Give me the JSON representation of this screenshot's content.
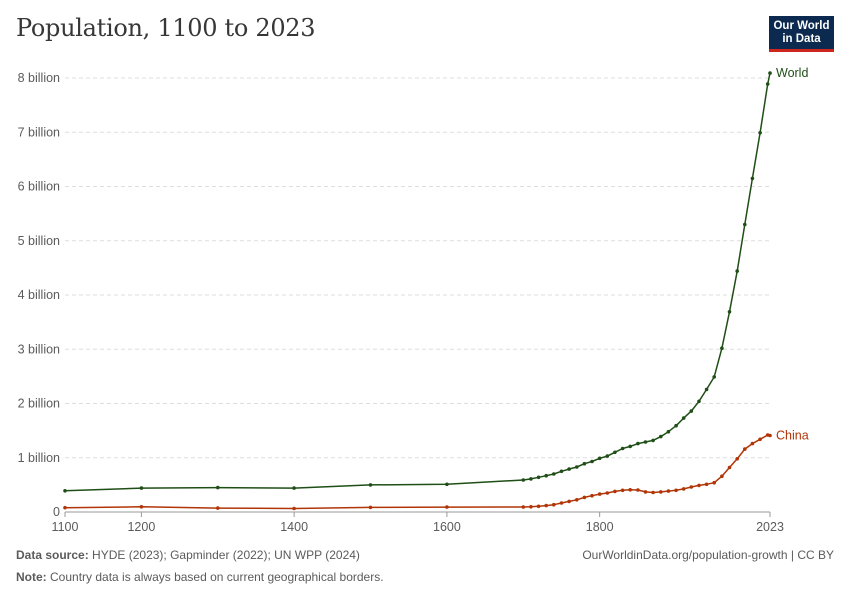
{
  "header": {
    "title": "Population, 1100 to 2023",
    "logo_line1": "Our World",
    "logo_line2": "in Data"
  },
  "footer": {
    "source_label": "Data source:",
    "source_text": "HYDE (2023); Gapminder (2022); UN WPP (2024)",
    "url_text": "OurWorldinData.org/population-growth | CC BY",
    "note_label": "Note:",
    "note_text": "Country data is always based on current geographical borders."
  },
  "colors": {
    "world": "#1f4e16",
    "china": "#b13507",
    "grid": "#dddddd",
    "axis": "#999999"
  },
  "chart_data": {
    "type": "line",
    "title": "Population, 1100 to 2023",
    "xlim": [
      1100,
      2023
    ],
    "ylim": [
      0,
      8000000000
    ],
    "x_ticks": [
      {
        "value": 1100,
        "label": "1100"
      },
      {
        "value": 1200,
        "label": "1200"
      },
      {
        "value": 1400,
        "label": "1400"
      },
      {
        "value": 1600,
        "label": "1600"
      },
      {
        "value": 1800,
        "label": "1800"
      },
      {
        "value": 2023,
        "label": "2023"
      }
    ],
    "y_ticks": [
      {
        "value": 0,
        "label": "0"
      },
      {
        "value": 1000000000,
        "label": "1 billion"
      },
      {
        "value": 2000000000,
        "label": "2 billion"
      },
      {
        "value": 3000000000,
        "label": "3 billion"
      },
      {
        "value": 4000000000,
        "label": "4 billion"
      },
      {
        "value": 5000000000,
        "label": "5 billion"
      },
      {
        "value": 6000000000,
        "label": "6 billion"
      },
      {
        "value": 7000000000,
        "label": "7 billion"
      },
      {
        "value": 8000000000,
        "label": "8 billion"
      }
    ],
    "grid": true,
    "legend": "end-of-line labels",
    "series": [
      {
        "name": "World",
        "color": "#1f4e16",
        "points": [
          [
            1100,
            390000000
          ],
          [
            1200,
            440000000
          ],
          [
            1300,
            450000000
          ],
          [
            1400,
            440000000
          ],
          [
            1500,
            500000000
          ],
          [
            1600,
            510000000
          ],
          [
            1700,
            590000000
          ],
          [
            1710,
            610000000
          ],
          [
            1720,
            640000000
          ],
          [
            1730,
            670000000
          ],
          [
            1740,
            700000000
          ],
          [
            1750,
            750000000
          ],
          [
            1760,
            790000000
          ],
          [
            1770,
            830000000
          ],
          [
            1780,
            890000000
          ],
          [
            1790,
            930000000
          ],
          [
            1800,
            990000000
          ],
          [
            1810,
            1030000000
          ],
          [
            1820,
            1100000000
          ],
          [
            1830,
            1170000000
          ],
          [
            1840,
            1210000000
          ],
          [
            1850,
            1260000000
          ],
          [
            1860,
            1290000000
          ],
          [
            1870,
            1320000000
          ],
          [
            1880,
            1390000000
          ],
          [
            1890,
            1480000000
          ],
          [
            1900,
            1590000000
          ],
          [
            1910,
            1730000000
          ],
          [
            1920,
            1860000000
          ],
          [
            1930,
            2040000000
          ],
          [
            1940,
            2260000000
          ],
          [
            1950,
            2490000000
          ],
          [
            1960,
            3020000000
          ],
          [
            1970,
            3690000000
          ],
          [
            1980,
            4440000000
          ],
          [
            1990,
            5300000000
          ],
          [
            2000,
            6150000000
          ],
          [
            2010,
            6990000000
          ],
          [
            2020,
            7890000000
          ],
          [
            2023,
            8090000000
          ]
        ]
      },
      {
        "name": "China",
        "color": "#b13507",
        "points": [
          [
            1100,
            80000000
          ],
          [
            1200,
            95000000
          ],
          [
            1300,
            72000000
          ],
          [
            1400,
            65000000
          ],
          [
            1500,
            84000000
          ],
          [
            1600,
            90000000
          ],
          [
            1700,
            93000000
          ],
          [
            1710,
            96000000
          ],
          [
            1720,
            105000000
          ],
          [
            1730,
            118000000
          ],
          [
            1740,
            135000000
          ],
          [
            1750,
            165000000
          ],
          [
            1760,
            195000000
          ],
          [
            1770,
            225000000
          ],
          [
            1780,
            270000000
          ],
          [
            1790,
            300000000
          ],
          [
            1800,
            330000000
          ],
          [
            1810,
            350000000
          ],
          [
            1820,
            380000000
          ],
          [
            1830,
            400000000
          ],
          [
            1840,
            410000000
          ],
          [
            1850,
            405000000
          ],
          [
            1860,
            370000000
          ],
          [
            1870,
            360000000
          ],
          [
            1880,
            370000000
          ],
          [
            1890,
            385000000
          ],
          [
            1900,
            400000000
          ],
          [
            1910,
            425000000
          ],
          [
            1920,
            460000000
          ],
          [
            1930,
            490000000
          ],
          [
            1940,
            510000000
          ],
          [
            1950,
            540000000
          ],
          [
            1960,
            660000000
          ],
          [
            1970,
            820000000
          ],
          [
            1980,
            980000000
          ],
          [
            1990,
            1160000000
          ],
          [
            2000,
            1260000000
          ],
          [
            2010,
            1340000000
          ],
          [
            2020,
            1420000000
          ],
          [
            2023,
            1410000000
          ]
        ]
      }
    ]
  }
}
